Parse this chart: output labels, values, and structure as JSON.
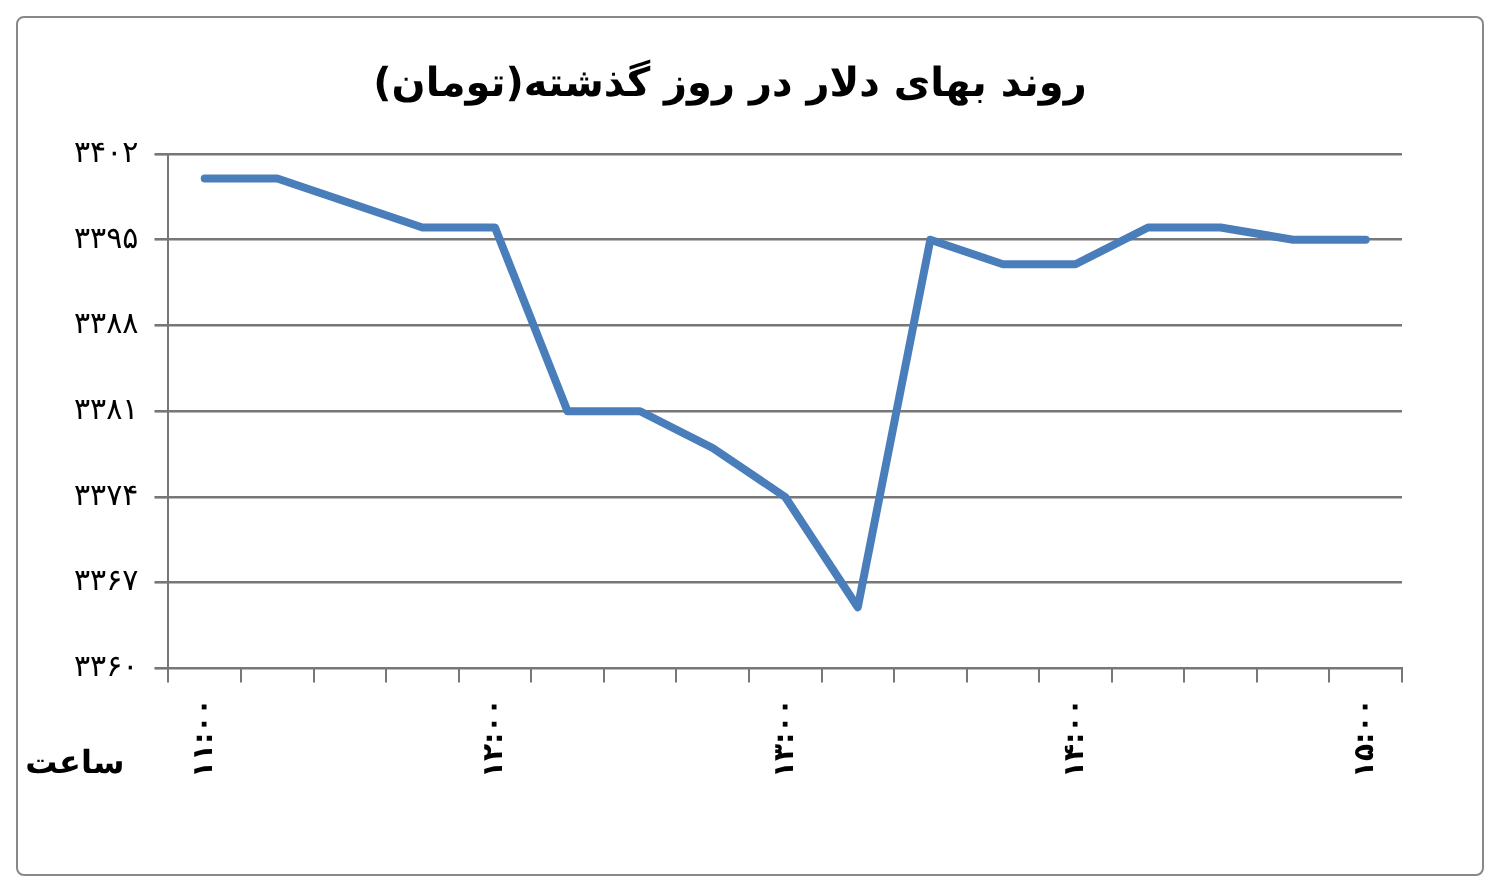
{
  "chart_data": {
    "type": "line",
    "title": "روند بهای دلار در روز گذشته(تومان)",
    "xlabel": "ساعت",
    "categories": [
      "۱۱:۰۰",
      null,
      null,
      null,
      "۱۲:۰۰",
      null,
      null,
      null,
      "۱۳:۰۰",
      null,
      null,
      null,
      "۱۴:۰۰",
      null,
      null,
      null,
      "۱۵:۰۰"
    ],
    "series": [
      {
        "color": "#4a7ebb",
        "values": [
          3400,
          3400,
          3398,
          3396,
          3396,
          3381,
          3381,
          3378,
          3374,
          3365,
          3395,
          3393,
          3393,
          3396,
          3396,
          3395,
          3395
        ]
      }
    ],
    "ylim": [
      3360,
      3402
    ],
    "yticks": [
      {
        "value": 3360,
        "label": "۳۳۶۰"
      },
      {
        "value": 3367,
        "label": "۳۳۶۷"
      },
      {
        "value": 3374,
        "label": "۳۳۷۴"
      },
      {
        "value": 3381,
        "label": "۳۳۸۱"
      },
      {
        "value": 3388,
        "label": "۳۳۸۸"
      },
      {
        "value": 3395,
        "label": "۳۳۹۵"
      },
      {
        "value": 3402,
        "label": "۳۴۰۲"
      }
    ],
    "grid": "y",
    "legend": false,
    "marker": "none",
    "line_style": "solid"
  }
}
